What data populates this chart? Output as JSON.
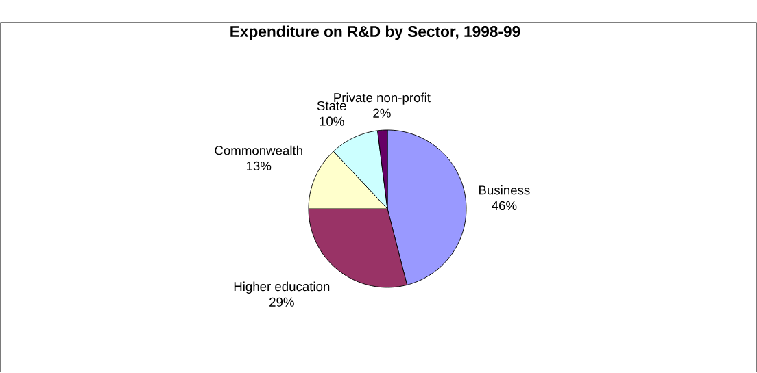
{
  "chart_data": {
    "type": "pie",
    "title": "Expenditure on R&D by Sector, 1998-99",
    "categories": [
      "Business",
      "Higher education",
      "Commonwealth",
      "State",
      "Private non-profit"
    ],
    "values": [
      46,
      29,
      13,
      10,
      2
    ],
    "value_labels": [
      "46%",
      "29%",
      "13%",
      "10%",
      "2%"
    ],
    "colors": [
      "#9999ff",
      "#993366",
      "#ffffcc",
      "#ccffff",
      "#660066"
    ],
    "legend": false
  }
}
